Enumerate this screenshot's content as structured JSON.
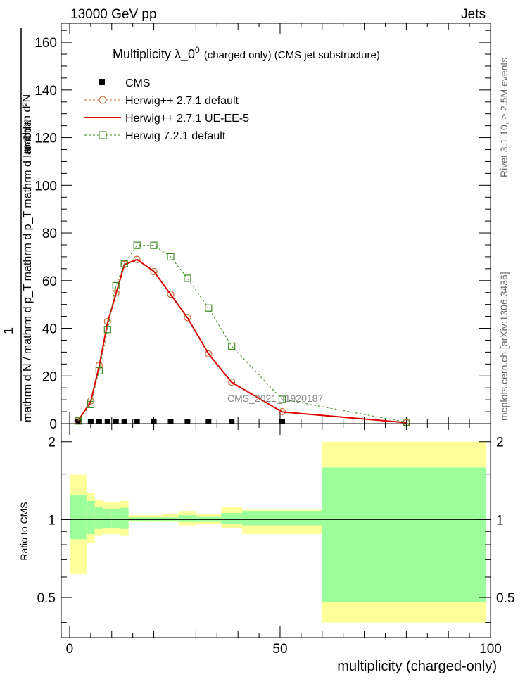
{
  "header": {
    "left": "13000 GeV pp",
    "right": "Jets"
  },
  "title": {
    "main": "Multiplicity  λ_0",
    "sup": "0",
    "small": "(charged only) (CMS jet substructure)"
  },
  "side": {
    "rivet": "Rivet 3.1.10, ≥ 2.5M events",
    "mcplots": "mcplots.cern.ch [arXiv:1306.3436]"
  },
  "watermark": "CMS_2021_I1920187",
  "colors": {
    "cms": "#000000",
    "herwig_default": "#c06a2b",
    "herwig_ueee5": "#dd0000",
    "herwig72": "#3c8a1e",
    "band_inner": "#9cff9c",
    "band_outer": "#ffff99"
  },
  "chart_data": [
    {
      "type": "line",
      "ylabel_numerator": "1",
      "ylabel_denominator": "mathrm d N / mathrm d p_T mathrm d p_T mathrm d lambda",
      "ylabel_top": "mathrm d²N",
      "xlim": [
        -2,
        100
      ],
      "ylim": [
        0,
        168
      ],
      "yticks": [
        0,
        20,
        40,
        60,
        80,
        100,
        120,
        140,
        160
      ],
      "legend_position": "top-left",
      "series": [
        {
          "name": "CMS",
          "style": "marker-square",
          "x": [
            2,
            5,
            7,
            9,
            11,
            13,
            16,
            20,
            24,
            28,
            33,
            38.5,
            50.5
          ],
          "y": [
            0,
            0,
            0,
            0,
            0,
            0,
            0,
            0,
            0,
            0,
            0,
            0,
            0
          ]
        },
        {
          "name": "Herwig++ 2.7.1 default",
          "style": "dashed-circle",
          "x": [
            2,
            5,
            7,
            9,
            11,
            13,
            16,
            20,
            24,
            28,
            33,
            38.5,
            50.5,
            80
          ],
          "y": [
            1.2,
            9.5,
            24.5,
            42.8,
            54.8,
            66.8,
            68.9,
            63.8,
            54.3,
            44.5,
            29.3,
            17.4,
            5.0,
            0.4
          ]
        },
        {
          "name": "Herwig++ 2.7.1 UE-EE-5",
          "style": "solid-line",
          "x": [
            2,
            5,
            7,
            9,
            11,
            13,
            16,
            20,
            24,
            28,
            33,
            38.5,
            50.5,
            80
          ],
          "y": [
            1.2,
            9.2,
            24.0,
            42.3,
            54.4,
            66.7,
            68.9,
            63.9,
            54.2,
            44.4,
            29.3,
            17.3,
            4.9,
            0.4
          ]
        },
        {
          "name": "Herwig 7.2.1 default",
          "style": "dashed-square",
          "x": [
            2,
            5,
            7,
            9,
            11,
            13,
            16,
            20,
            24,
            28,
            33,
            38.5,
            50.5,
            80
          ],
          "y": [
            1.1,
            8.0,
            22.2,
            39.5,
            57.9,
            67.1,
            74.8,
            74.8,
            70.0,
            61.0,
            48.5,
            32.5,
            10.2,
            0.6
          ]
        }
      ]
    },
    {
      "type": "area",
      "ylabel": "Ratio to CMS",
      "xlabel": "multiplicity (charged-only)",
      "xlim": [
        -2,
        100
      ],
      "xticks": [
        0,
        50,
        100
      ],
      "yticks": [
        0.5,
        1,
        2
      ],
      "ylim": [
        0.35,
        2.35
      ],
      "bins": [
        {
          "lo": 0,
          "hi": 4,
          "inner": [
            0.84,
            1.24
          ],
          "outer": [
            0.62,
            1.49
          ]
        },
        {
          "lo": 4,
          "hi": 6,
          "inner": [
            0.88,
            1.18
          ],
          "outer": [
            0.81,
            1.27
          ]
        },
        {
          "lo": 6,
          "hi": 8,
          "inner": [
            0.92,
            1.12
          ],
          "outer": [
            0.87,
            1.19
          ]
        },
        {
          "lo": 8,
          "hi": 10,
          "inner": [
            0.93,
            1.1
          ],
          "outer": [
            0.88,
            1.17
          ]
        },
        {
          "lo": 10,
          "hi": 12,
          "inner": [
            0.93,
            1.1
          ],
          "outer": [
            0.88,
            1.17
          ]
        },
        {
          "lo": 12,
          "hi": 14,
          "inner": [
            0.92,
            1.11
          ],
          "outer": [
            0.87,
            1.18
          ]
        },
        {
          "lo": 14,
          "hi": 18,
          "inner": [
            0.99,
            1.02
          ],
          "outer": [
            0.98,
            1.04
          ]
        },
        {
          "lo": 18,
          "hi": 22,
          "inner": [
            0.99,
            1.02
          ],
          "outer": [
            0.98,
            1.04
          ]
        },
        {
          "lo": 22,
          "hi": 26,
          "inner": [
            0.99,
            1.02
          ],
          "outer": [
            0.98,
            1.05
          ]
        },
        {
          "lo": 26,
          "hi": 30,
          "inner": [
            0.98,
            1.04
          ],
          "outer": [
            0.95,
            1.08
          ]
        },
        {
          "lo": 30,
          "hi": 36,
          "inner": [
            0.98,
            1.03
          ],
          "outer": [
            0.96,
            1.05
          ]
        },
        {
          "lo": 36,
          "hi": 41,
          "inner": [
            0.96,
            1.06
          ],
          "outer": [
            0.93,
            1.12
          ]
        },
        {
          "lo": 41,
          "hi": 60,
          "inner": [
            0.95,
            1.08
          ],
          "outer": [
            0.88,
            1.09
          ]
        },
        {
          "lo": 60,
          "hi": 99,
          "inner": [
            0.48,
            1.59
          ],
          "outer": [
            0.4,
            2.0
          ]
        }
      ]
    }
  ]
}
